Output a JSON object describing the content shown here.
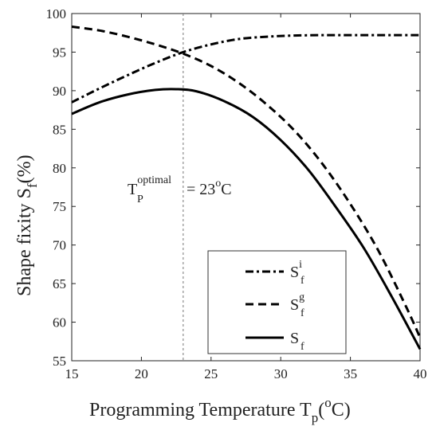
{
  "chart_data": {
    "type": "line",
    "title": "",
    "xlabel": {
      "main": "Programming Temperature T",
      "sub": "p",
      "open": "(",
      "sup": "o",
      "unit": "C)"
    },
    "ylabel": {
      "main": "Shape fixity S",
      "sub": "f",
      "unit": "(%)"
    },
    "xlim": [
      15,
      40
    ],
    "ylim": [
      55,
      100
    ],
    "xticks": [
      15,
      20,
      25,
      30,
      35,
      40
    ],
    "yticks": [
      55,
      60,
      65,
      70,
      75,
      80,
      85,
      90,
      95,
      100
    ],
    "grid": false,
    "legend_position": "bottom-right",
    "series": [
      {
        "name": {
          "base": "S",
          "sub": "f",
          "sup": "i"
        },
        "style": "dash-dot",
        "x": [
          15,
          17,
          19,
          21,
          23,
          25,
          27,
          29,
          31,
          33,
          35,
          37,
          40
        ],
        "y": [
          88.5,
          90.3,
          92.0,
          93.6,
          95.0,
          96.0,
          96.7,
          97.0,
          97.15,
          97.2,
          97.2,
          97.2,
          97.2
        ]
      },
      {
        "name": {
          "base": "S",
          "sub": "f",
          "sup": "g"
        },
        "style": "dashed",
        "x": [
          15,
          17,
          19,
          21,
          23,
          25,
          27,
          29,
          31,
          33,
          35,
          37,
          39,
          40
        ],
        "y": [
          98.3,
          97.8,
          97.0,
          96.0,
          94.8,
          93.2,
          91.0,
          88.2,
          84.8,
          80.5,
          75.3,
          69.3,
          62.0,
          58.0
        ]
      },
      {
        "name": {
          "base": "S",
          "sub": "f"
        },
        "style": "solid",
        "x": [
          15,
          17,
          19,
          21,
          22.5,
          24,
          26,
          28,
          30,
          32,
          34,
          36,
          38,
          40
        ],
        "y": [
          87.0,
          88.5,
          89.5,
          90.1,
          90.2,
          89.9,
          88.6,
          86.6,
          83.6,
          79.7,
          74.8,
          69.5,
          63.2,
          56.5
        ]
      }
    ],
    "annotations": {
      "optimal_x": 23,
      "label": {
        "base": "T",
        "sub": "P",
        "sup": "optimal",
        "eq": "= 23",
        "deg": "o",
        "unit": "C"
      }
    }
  }
}
